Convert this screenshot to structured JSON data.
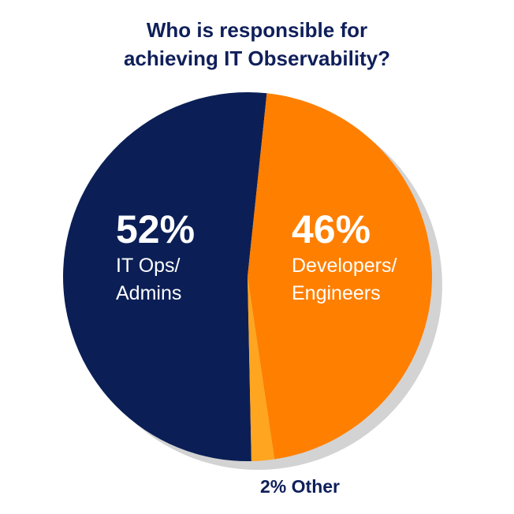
{
  "chart_data": {
    "type": "pie",
    "title": "Who is responsible for achieving IT Observability?",
    "categories": [
      "IT Ops/ Admins",
      "Developers/ Engineers",
      "Other"
    ],
    "values": [
      52,
      46,
      2
    ],
    "value_labels": [
      "52%",
      "46%",
      "2%"
    ],
    "colors": [
      "#0b1f56",
      "#ff7f00",
      "#ffa51f"
    ]
  }
}
